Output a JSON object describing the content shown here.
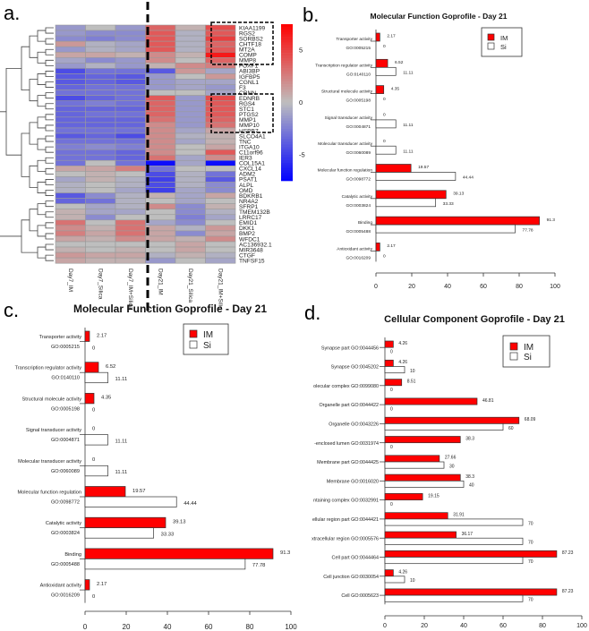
{
  "panels": {
    "a": "a.",
    "b": "b.",
    "c": "c.",
    "d": "d."
  },
  "colors": {
    "im": "#ff0000",
    "si": "#ffffff",
    "high": "#ff0000",
    "low": "#0000ff",
    "mid": "#bebebe"
  },
  "chart_data": [
    {
      "id": "a",
      "type": "heatmap",
      "columns": [
        "Day7_IM",
        "Day7_Silica",
        "Day7_IM+Silica",
        "Day21_IM",
        "Day21_Silica",
        "Day21_IM+Silic"
      ],
      "rows": [
        "KIAA1199",
        "RGS2",
        "SORBS2",
        "CHTF18",
        "MT2A",
        "COMP",
        "MMP8",
        "FOXF1",
        "ABI3BP",
        "IGFBP5",
        "CGNL1",
        "F3",
        "CRNN",
        "EDNRB",
        "RGS4",
        "STC1",
        "PTGS2",
        "MMP1",
        "MMP10",
        "HSPB7",
        "SLCO4A1",
        "TNC",
        "ITGA10",
        "C11orf96",
        "IER3",
        "COL15A1",
        "CXCL14",
        "ADM2",
        "PSAT1",
        "ALPL",
        "OMD",
        "BDKRB1",
        "NR4A2",
        "SFRP1",
        "TMEM132B",
        "LRRC17",
        "EMID1",
        "DKK1",
        "BMP2",
        "WFDC1",
        "AC136932.1",
        "MIR3648",
        "CTGF",
        "TNFSF15"
      ],
      "values": [
        [
          -1.5,
          0,
          -1.5,
          3.5,
          0.5,
          4.5
        ],
        [
          -1.5,
          -2,
          -2,
          4,
          -0.5,
          4
        ],
        [
          -2,
          -2.5,
          -2,
          4,
          -0.5,
          5
        ],
        [
          1.5,
          -0.5,
          -1,
          4,
          -0.5,
          3.5
        ],
        [
          -1.5,
          -0.5,
          -1,
          4,
          -0.5,
          4
        ],
        [
          1,
          1,
          0.5,
          2,
          0.5,
          6.5
        ],
        [
          -1,
          -2,
          -1.5,
          2,
          0,
          3.5
        ],
        [
          -1.5,
          -0.5,
          -1.5,
          0.5,
          2,
          2.5
        ],
        [
          -4.5,
          -3,
          -3,
          -4,
          1.5,
          -1
        ],
        [
          -4,
          -3.5,
          -4,
          -1.5,
          0,
          1.5
        ],
        [
          -4,
          -3.5,
          -4,
          -1.5,
          -1,
          -1
        ],
        [
          -3.5,
          -3,
          -3,
          -1.5,
          -1,
          -1.5
        ],
        [
          -3,
          -3,
          -3,
          0,
          0,
          -1
        ],
        [
          -4.5,
          -3.5,
          -3,
          4,
          -1.5,
          4.5
        ],
        [
          -3,
          -2.5,
          -3,
          3.5,
          -1.5,
          4
        ],
        [
          -3.5,
          -3.5,
          -3.5,
          3.5,
          -1.5,
          4
        ],
        [
          -3.5,
          -3,
          -3,
          3.5,
          -1.5,
          4
        ],
        [
          -3.5,
          -3.5,
          -3.5,
          3,
          -1.5,
          3.5
        ],
        [
          -3.5,
          -3.5,
          -3.5,
          2,
          -1.5,
          3
        ],
        [
          -3,
          -3,
          -3,
          2,
          -1,
          1
        ],
        [
          -4,
          -3.5,
          -4.5,
          2,
          -0.5,
          0.5
        ],
        [
          -3,
          -3,
          -3,
          2,
          -1,
          0.5
        ],
        [
          -2.5,
          -2,
          -2.5,
          2,
          0,
          1
        ],
        [
          -3,
          -3,
          -3.5,
          2,
          0,
          4
        ],
        [
          -3,
          -3,
          -3.5,
          3,
          -1,
          2
        ],
        [
          -3,
          0,
          -3,
          -7,
          -1,
          -7
        ],
        [
          1,
          1,
          2.5,
          -3,
          0,
          0
        ],
        [
          0,
          0.5,
          0,
          -4.5,
          -0.5,
          -3
        ],
        [
          -1,
          0.5,
          -0.5,
          -5,
          -0.5,
          -4
        ],
        [
          -0.5,
          0,
          -0.5,
          -4.5,
          -0.5,
          -2
        ],
        [
          -0.5,
          0,
          -1,
          -5,
          -1,
          -2
        ],
        [
          -4,
          -2,
          -0.5,
          0.5,
          -1,
          1
        ],
        [
          -3.5,
          -3,
          -0.5,
          0,
          -1,
          0
        ],
        [
          0,
          -1,
          -0.5,
          2,
          -2,
          0.5
        ],
        [
          0.5,
          -1,
          -1,
          0,
          -2,
          -0.5
        ],
        [
          0.5,
          -2,
          0,
          0,
          -2.5,
          -1
        ],
        [
          3,
          0,
          3,
          -1,
          -2,
          0
        ],
        [
          2,
          0.5,
          3,
          1,
          -0.5,
          1.5
        ],
        [
          2.5,
          1,
          3,
          1,
          -2,
          1
        ],
        [
          1,
          0.5,
          2,
          1,
          0.5,
          2
        ],
        [
          0,
          0,
          0,
          0,
          1,
          0
        ],
        [
          0.5,
          0,
          0.5,
          0,
          1,
          0
        ],
        [
          1.5,
          1,
          1,
          -0.5,
          0.5,
          -0.5
        ],
        [
          1,
          0.5,
          0.5,
          -1.5,
          0,
          -1
        ]
      ],
      "colorbar": {
        "range": [
          -7.5,
          7.5
        ],
        "ticks": [
          "5",
          "0",
          "-5"
        ],
        "tick_values": [
          5,
          0,
          -5
        ]
      }
    },
    {
      "id": "b",
      "type": "bar",
      "orientation": "horizontal",
      "title": "Molecular Function Goprofile - Day 21",
      "categories": [
        "Transporter activity",
        "Transcription regulator activity",
        "Structural molecule activity",
        "Signal transducer activity",
        "Molecular transducer activity",
        "Molecular function regulation",
        "Catalytic activity",
        "Binding",
        "Antioxidant activity"
      ],
      "go_ids": [
        "GO:0005215",
        "GO:0140110",
        "GO:0005198",
        "GO:0004871",
        "GO:0060089",
        "GO:0098772",
        "GO:0003824",
        "GO:0005488",
        "GO:0016209"
      ],
      "series": [
        {
          "name": "IM",
          "values": [
            2.17,
            6.52,
            4.35,
            0,
            0,
            19.57,
            39.13,
            91.3,
            2.17
          ],
          "labels": [
            "2.17",
            "6.52",
            "4.35",
            "0",
            "0",
            "19.57",
            "39.13",
            "91.3",
            "2.17"
          ]
        },
        {
          "name": "Si",
          "values": [
            0,
            11.11,
            0,
            11.11,
            11.11,
            44.44,
            33.33,
            77.78,
            0
          ],
          "labels": [
            "0",
            "11.11",
            "0",
            "11.11",
            "11.11",
            "44.44",
            "33.33",
            "77.78",
            "0"
          ]
        }
      ],
      "xlim": [
        0,
        100
      ],
      "xticks": [
        "0",
        "20",
        "40",
        "60",
        "80",
        "100"
      ],
      "legend": "top-right"
    },
    {
      "id": "c",
      "type": "bar",
      "orientation": "horizontal",
      "title": "Molecular Function Goprofile - Day 21",
      "categories": [
        "Transporter activity",
        "Transcription regulator activity",
        "Structural molecule activity",
        "Signal transducer activity",
        "Molecular transducer activity",
        "Molecular function regulation",
        "Catalytic activity",
        "Binding",
        "Antioxidant activity"
      ],
      "go_ids": [
        "GO:0005215",
        "GO:0140110",
        "GO:0005198",
        "GO:0004871",
        "GO:0060089",
        "GO:0098772",
        "GO:0003824",
        "GO:0005488",
        "GO:0016209"
      ],
      "series": [
        {
          "name": "IM",
          "values": [
            2.17,
            6.52,
            4.35,
            0,
            0,
            19.57,
            39.13,
            91.3,
            2.17
          ],
          "labels": [
            "2.17",
            "6.52",
            "4.35",
            "0",
            "0",
            "19.57",
            "39.13",
            "91.3",
            "2.17"
          ]
        },
        {
          "name": "Si",
          "values": [
            0,
            11.11,
            0,
            11.11,
            11.11,
            44.44,
            33.33,
            77.78,
            0
          ],
          "labels": [
            "0",
            "11.11",
            "0",
            "11.11",
            "11.11",
            "44.44",
            "33.33",
            "77.78",
            "0"
          ]
        }
      ],
      "xlim": [
        0,
        100
      ],
      "xticks": [
        "0",
        "20",
        "40",
        "60",
        "80",
        "100"
      ],
      "legend": "top-right"
    },
    {
      "id": "d",
      "type": "bar",
      "orientation": "horizontal",
      "title": "Cellular Component Goprofile - Day 21",
      "categories": [
        "Synapse part GO:0044456",
        "Synapse GO:0045202",
        "olecular complex GO:0099080",
        "Organelle part GO:0044422",
        "Organelle GO:0043226",
        "-enclosed lumen GO:0031974",
        "Membrane part GO:0044425",
        "Membrane GO:0016020",
        "ntaining complex GO:0032991",
        "ellular region part GO:0044421",
        "xtracellular region GO:0005576",
        "Cell part GO:0044464",
        "Cell junction GO:0030054",
        "Cell GO:0005623"
      ],
      "series": [
        {
          "name": "IM",
          "values": [
            4.26,
            4.26,
            8.51,
            46.81,
            68.09,
            38.3,
            27.66,
            38.3,
            19.15,
            31.91,
            36.17,
            87.23,
            4.26,
            87.23
          ],
          "labels": [
            "4.26",
            "4.26",
            "8.51",
            "46.81",
            "68.09",
            "38.3",
            "27.66",
            "38.3",
            "19.15",
            "31.91",
            "36.17",
            "87.23",
            "4.26",
            "87.23"
          ]
        },
        {
          "name": "Si",
          "values": [
            0,
            10,
            0,
            0,
            60,
            0,
            30,
            40,
            0,
            70,
            70,
            70,
            10,
            70
          ],
          "labels": [
            "0",
            "10",
            "0",
            "0",
            "60",
            "0",
            "30",
            "40",
            "0",
            "70",
            "70",
            "70",
            "10",
            "70"
          ]
        }
      ],
      "xlim": [
        0,
        100
      ],
      "xticks": [
        "0",
        "20",
        "40",
        "60",
        "80",
        "100"
      ],
      "legend": "top-right"
    }
  ]
}
